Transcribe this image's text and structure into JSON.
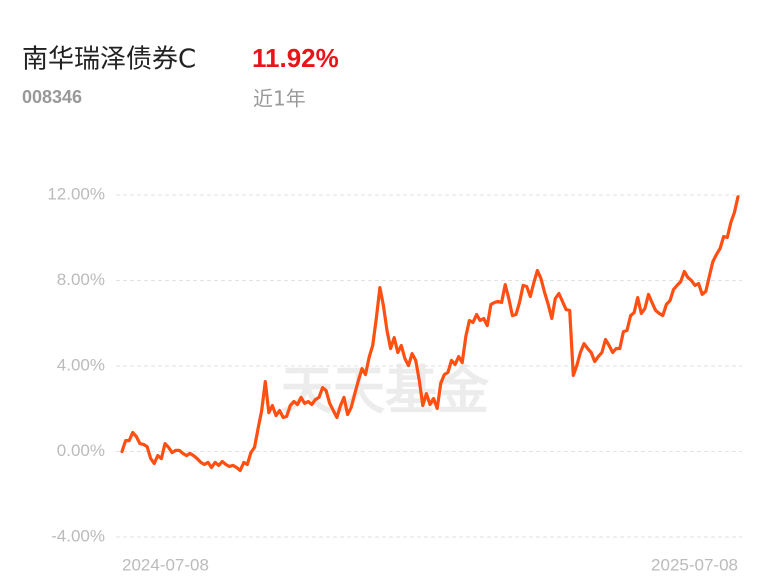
{
  "header": {
    "title": "南华瑞泽债券C",
    "return": "11.92%",
    "code": "008346",
    "period": "近1年"
  },
  "chart_data": {
    "type": "line",
    "watermark": "天天基金",
    "categories": [
      "2024-07-08",
      null,
      null,
      null,
      null,
      null,
      null,
      null,
      null,
      null,
      null,
      null,
      null,
      null,
      null,
      null,
      null,
      null,
      null,
      null,
      null,
      null,
      null,
      null,
      null,
      null,
      null,
      null,
      null,
      null,
      null,
      null,
      null,
      null,
      null,
      null,
      null,
      null,
      null,
      null,
      null,
      null,
      null,
      null,
      null,
      null,
      null,
      null,
      null,
      null,
      null,
      null,
      null,
      null,
      null,
      null,
      null,
      null,
      null,
      null,
      null,
      null,
      null,
      null,
      null,
      null,
      null,
      null,
      null,
      null,
      null,
      null,
      null,
      null,
      null,
      null,
      null,
      null,
      null,
      null,
      null,
      null,
      null,
      null,
      null,
      null,
      null,
      null,
      null,
      null,
      null,
      null,
      null,
      null,
      null,
      null,
      null,
      null,
      null,
      null,
      null,
      null,
      null,
      null,
      null,
      null,
      null,
      null,
      null,
      null,
      null,
      null,
      null,
      null,
      null,
      null,
      null,
      null,
      null,
      null,
      null,
      null,
      null,
      null,
      null,
      null,
      null,
      null,
      null,
      null,
      null,
      null,
      null,
      null,
      null,
      null,
      null,
      null,
      null,
      null,
      null,
      null,
      null,
      null,
      null,
      null,
      null,
      null,
      null,
      null,
      null,
      null,
      null,
      null,
      null,
      null,
      null,
      null,
      null,
      null,
      null,
      null,
      null,
      null,
      null,
      null,
      null,
      null,
      null,
      null,
      null,
      null,
      "2025-07-08"
    ],
    "values": [
      0,
      0.51,
      0.51,
      0.89,
      0.7,
      0.37,
      0.33,
      0.23,
      -0.33,
      -0.56,
      -0.19,
      -0.33,
      0.37,
      0.19,
      -0.05,
      0.05,
      0.05,
      -0.09,
      -0.19,
      -0.09,
      -0.19,
      -0.33,
      -0.51,
      -0.61,
      -0.51,
      -0.75,
      -0.51,
      -0.65,
      -0.47,
      -0.61,
      -0.7,
      -0.65,
      -0.75,
      -0.89,
      -0.51,
      -0.61,
      -0.05,
      0.19,
      1.08,
      1.92,
      3.27,
      1.82,
      2.15,
      1.68,
      1.92,
      1.59,
      1.64,
      2.15,
      2.34,
      2.2,
      2.53,
      2.25,
      2.34,
      2.2,
      2.43,
      2.53,
      2.99,
      2.85,
      2.25,
      1.92,
      1.59,
      2.15,
      2.53,
      1.73,
      2.06,
      2.71,
      3.32,
      3.88,
      3.6,
      4.4,
      4.96,
      6.22,
      7.67,
      6.83,
      5.66,
      4.82,
      5.33,
      4.63,
      4.96,
      4.35,
      4.02,
      4.58,
      4.26,
      3.32,
      2.15,
      2.71,
      2.2,
      2.48,
      2.01,
      3.18,
      3.6,
      3.7,
      4.26,
      4.07,
      4.44,
      4.16,
      5.38,
      6.13,
      6.04,
      6.41,
      6.13,
      6.22,
      5.89,
      6.88,
      6.97,
      7.02,
      6.97,
      7.81,
      7.16,
      6.36,
      6.41,
      6.97,
      7.77,
      7.72,
      7.25,
      7.91,
      8.47,
      8.09,
      7.44,
      6.88,
      6.22,
      7.16,
      7.39,
      7.02,
      6.64,
      6.6,
      3.56,
      4.02,
      4.63,
      5.05,
      4.82,
      4.63,
      4.21,
      4.44,
      4.63,
      5.24,
      4.96,
      4.63,
      4.82,
      4.82,
      5.61,
      5.66,
      6.36,
      6.5,
      7.2,
      6.46,
      6.69,
      7.35,
      6.97,
      6.6,
      6.46,
      6.36,
      6.88,
      7.06,
      7.58,
      7.77,
      7.95,
      8.42,
      8.14,
      8.0,
      7.77,
      7.86,
      7.35,
      7.49,
      8.19,
      8.89,
      9.22,
      9.5,
      10.06,
      10.01,
      10.71,
      11.18,
      11.92
    ],
    "color": "#ff4f12",
    "ylim": [
      -4,
      12
    ],
    "yticks": [
      {
        "value": 12,
        "label": "12.00%"
      },
      {
        "value": 8,
        "label": "8.00%"
      },
      {
        "value": 4,
        "label": "4.00%"
      },
      {
        "value": 0,
        "label": "0.00%"
      },
      {
        "value": -4,
        "label": "-4.00%"
      }
    ],
    "grid": true
  }
}
